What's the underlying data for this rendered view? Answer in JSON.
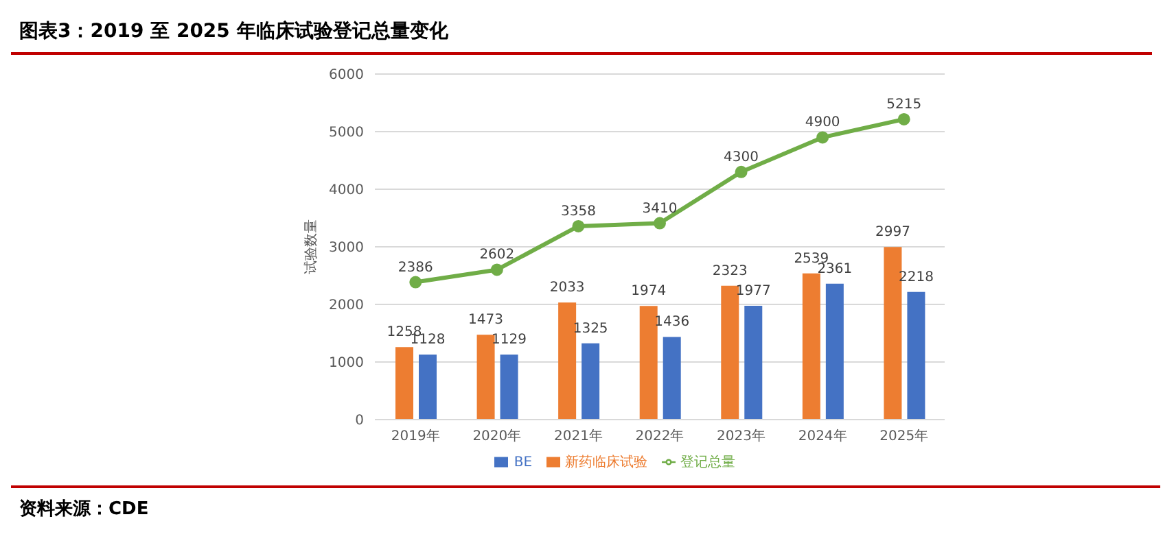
{
  "chart_data": {
    "type": "bar",
    "title": "图表3：2019 至 2025 年临床试验登记总量变化",
    "ylabel": "试验数量",
    "categories": [
      "2019年",
      "2020年",
      "2021年",
      "2022年",
      "2023年",
      "2024年",
      "2025年"
    ],
    "series": [
      {
        "name": "新药临床试验",
        "color": "#ed7d31",
        "values": [
          1258,
          1473,
          2033,
          1974,
          2323,
          2539,
          2997
        ]
      },
      {
        "name": "BE",
        "color": "#4472c4",
        "values": [
          1128,
          1129,
          1325,
          1436,
          1977,
          2361,
          2218
        ]
      },
      {
        "name": "登记总量",
        "type": "line",
        "color": "#70ad47",
        "values": [
          2386,
          2602,
          3358,
          3410,
          4300,
          4900,
          5215
        ]
      }
    ],
    "ylim": [
      0,
      6000
    ],
    "yticks": [
      0,
      1000,
      2000,
      3000,
      4000,
      5000,
      6000
    ],
    "grid": "y",
    "legend": "bottom",
    "marker": "circle",
    "data_labels": true,
    "annotations": [
      "资料来源：CDE"
    ]
  }
}
